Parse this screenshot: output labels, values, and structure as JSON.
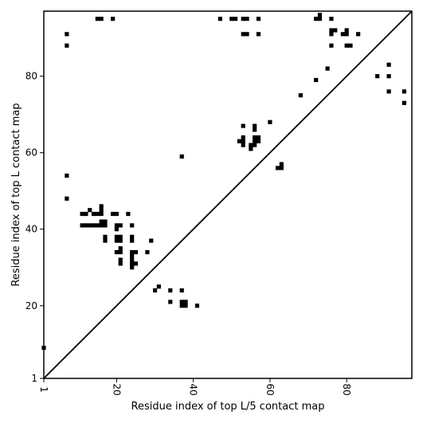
{
  "chart_data": {
    "type": "scatter",
    "title": "",
    "xlabel": "Residue index of top L/5 contact map",
    "ylabel": "Residue index of top L contact map",
    "xlim": [
      1,
      97
    ],
    "ylim": [
      1,
      97
    ],
    "x_ticks": [
      1,
      20,
      40,
      60,
      80
    ],
    "y_ticks": [
      1,
      20,
      40,
      60,
      80
    ],
    "x_tick_labels": [
      "1",
      "20",
      "40",
      "60",
      "80"
    ],
    "y_tick_labels": [
      "1",
      "20",
      "40",
      "60",
      "80"
    ],
    "x_tick_label_rotation": "vertical",
    "grid": false,
    "legend": false,
    "diagonal_line": true,
    "marker": "square",
    "marker_color": "#000000",
    "series": [
      {
        "points": [
          [
            7,
            91
          ],
          [
            7,
            88
          ],
          [
            15,
            95
          ],
          [
            16,
            95
          ],
          [
            19,
            95
          ],
          [
            47,
            95
          ],
          [
            50,
            95
          ],
          [
            51,
            95
          ],
          [
            53,
            95
          ],
          [
            54,
            95
          ],
          [
            57,
            95
          ],
          [
            53,
            91
          ],
          [
            54,
            91
          ],
          [
            57,
            91
          ],
          [
            72,
            95
          ],
          [
            73,
            95
          ],
          [
            73,
            96
          ],
          [
            76,
            95
          ],
          [
            76,
            92
          ],
          [
            77,
            92
          ],
          [
            76,
            91
          ],
          [
            79,
            91
          ],
          [
            80,
            91
          ],
          [
            80,
            92
          ],
          [
            83,
            91
          ],
          [
            76,
            88
          ],
          [
            80,
            88
          ],
          [
            81,
            88
          ],
          [
            75,
            82
          ],
          [
            72,
            79
          ],
          [
            68,
            75
          ],
          [
            7,
            54
          ],
          [
            7,
            48
          ],
          [
            37,
            59
          ],
          [
            60,
            68
          ],
          [
            53,
            67
          ],
          [
            56,
            67
          ],
          [
            56,
            66
          ],
          [
            52,
            63
          ],
          [
            53,
            63
          ],
          [
            53,
            64
          ],
          [
            53,
            62
          ],
          [
            56,
            64
          ],
          [
            57,
            64
          ],
          [
            56,
            63
          ],
          [
            57,
            63
          ],
          [
            55,
            62
          ],
          [
            55,
            61
          ],
          [
            56,
            62
          ],
          [
            62,
            56
          ],
          [
            63,
            56
          ],
          [
            63,
            57
          ],
          [
            11,
            44
          ],
          [
            12,
            44
          ],
          [
            13,
            45
          ],
          [
            14,
            44
          ],
          [
            15,
            44
          ],
          [
            16,
            44
          ],
          [
            16,
            45
          ],
          [
            16,
            46
          ],
          [
            19,
            44
          ],
          [
            20,
            44
          ],
          [
            23,
            44
          ],
          [
            11,
            41
          ],
          [
            12,
            41
          ],
          [
            13,
            41
          ],
          [
            14,
            41
          ],
          [
            15,
            41
          ],
          [
            16,
            41
          ],
          [
            17,
            41
          ],
          [
            16,
            42
          ],
          [
            17,
            42
          ],
          [
            20,
            41
          ],
          [
            21,
            41
          ],
          [
            24,
            41
          ],
          [
            20,
            40
          ],
          [
            17,
            38
          ],
          [
            17,
            37
          ],
          [
            20,
            38
          ],
          [
            21,
            38
          ],
          [
            20,
            37
          ],
          [
            21,
            37
          ],
          [
            24,
            38
          ],
          [
            24,
            37
          ],
          [
            20,
            34
          ],
          [
            21,
            34
          ],
          [
            21,
            35
          ],
          [
            24,
            34
          ],
          [
            25,
            34
          ],
          [
            28,
            34
          ],
          [
            29,
            37
          ],
          [
            21,
            32
          ],
          [
            21,
            31
          ],
          [
            24,
            31
          ],
          [
            25,
            31
          ],
          [
            24,
            30
          ],
          [
            24,
            33
          ],
          [
            24,
            32
          ],
          [
            31,
            25
          ],
          [
            30,
            24
          ],
          [
            34,
            24
          ],
          [
            37,
            24
          ],
          [
            34,
            21
          ],
          [
            37,
            21
          ],
          [
            38,
            21
          ],
          [
            37,
            20
          ],
          [
            38,
            20
          ],
          [
            41,
            20
          ],
          [
            1,
            9
          ],
          [
            88,
            80
          ],
          [
            91,
            80
          ],
          [
            91,
            83
          ],
          [
            91,
            76
          ],
          [
            95,
            76
          ],
          [
            95,
            73
          ]
        ]
      }
    ]
  }
}
